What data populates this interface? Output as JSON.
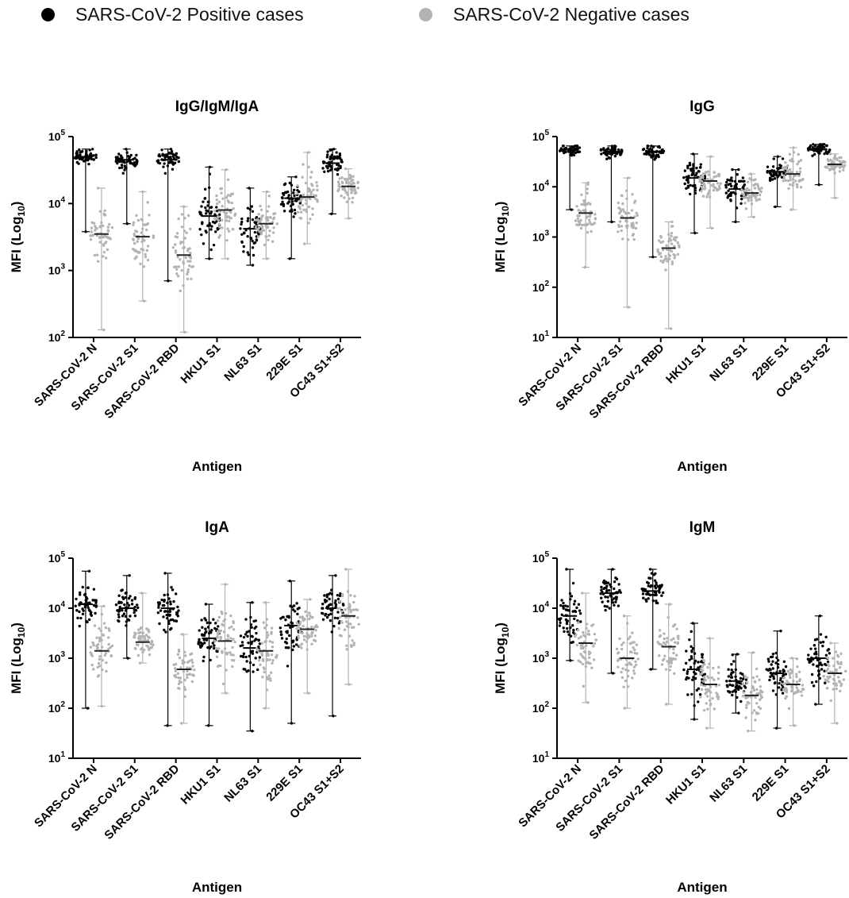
{
  "legend": {
    "positive_label": "SARS-CoV-2 Positive cases",
    "negative_label": "SARS-CoV-2 Negative cases",
    "positive_color": "#000000",
    "negative_color": "#b3b3b3"
  },
  "chart_data": [
    {
      "type": "scatter",
      "title": "IgG/IgM/IgA",
      "xlabel": "Antigen",
      "ylabel": "MFI (Log10)",
      "yscale": "log",
      "ylim": [
        100,
        100000
      ],
      "categories": [
        "SARS-CoV-2 N",
        "SARS-CoV-2 S1",
        "SARS-CoV-2 RBD",
        "HKU1 S1",
        "NL63 S1",
        "229E S1",
        "OC43 S1+S2"
      ],
      "series": [
        {
          "name": "SARS-CoV-2 Positive cases",
          "median": [
            50000,
            45000,
            45000,
            6500,
            4200,
            12000,
            40000
          ],
          "min": [
            3800,
            5000,
            700,
            1500,
            1200,
            1500,
            7000
          ],
          "max": [
            65000,
            65000,
            65000,
            35000,
            17000,
            25000,
            65000
          ]
        },
        {
          "name": "SARS-CoV-2 Negative cases",
          "median": [
            3500,
            3200,
            1700,
            8000,
            5000,
            12500,
            18000
          ],
          "min": [
            130,
            350,
            120,
            1500,
            1500,
            2500,
            6000
          ],
          "max": [
            17000,
            15000,
            9000,
            32000,
            15000,
            58000,
            33000
          ]
        }
      ]
    },
    {
      "type": "scatter",
      "title": "IgG",
      "xlabel": "Antigen",
      "ylabel": "MFI (Log10)",
      "yscale": "log",
      "ylim": [
        10,
        100000
      ],
      "categories": [
        "SARS-CoV-2 N",
        "SARS-CoV-2 S1",
        "SARS-CoV-2 RBD",
        "HKU1 S1",
        "NL63 S1",
        "229E S1",
        "OC43 S1+S2"
      ],
      "series": [
        {
          "name": "SARS-CoV-2 Positive cases",
          "median": [
            55000,
            50000,
            50000,
            15000,
            9000,
            20000,
            55000
          ],
          "min": [
            3500,
            2000,
            400,
            1200,
            2000,
            4000,
            11000
          ],
          "max": [
            65000,
            65000,
            65000,
            45000,
            22000,
            40000,
            70000
          ]
        },
        {
          "name": "SARS-CoV-2 Negative cases",
          "median": [
            3000,
            2400,
            600,
            13000,
            7500,
            18000,
            28000
          ],
          "min": [
            250,
            40,
            15,
            1500,
            2500,
            3500,
            6000
          ],
          "max": [
            12000,
            15000,
            2000,
            40000,
            18000,
            60000,
            45000
          ]
        }
      ]
    },
    {
      "type": "scatter",
      "title": "IgA",
      "xlabel": "Antigen",
      "ylabel": "MFI (Log10)",
      "yscale": "log",
      "ylim": [
        10,
        100000
      ],
      "categories": [
        "SARS-CoV-2 N",
        "SARS-CoV-2 S1",
        "SARS-CoV-2 RBD",
        "HKU1 S1",
        "NL63 S1",
        "229E S1",
        "OC43 S1+S2"
      ],
      "series": [
        {
          "name": "SARS-CoV-2 Positive cases",
          "median": [
            12000,
            10000,
            10000,
            2500,
            1600,
            4500,
            10000
          ],
          "min": [
            100,
            1000,
            45,
            45,
            35,
            50,
            70
          ],
          "max": [
            55000,
            45000,
            50000,
            12000,
            13000,
            35000,
            45000
          ]
        },
        {
          "name": "SARS-CoV-2 Negative cases",
          "median": [
            1400,
            2100,
            600,
            2200,
            1400,
            3800,
            7000
          ],
          "min": [
            110,
            800,
            50,
            200,
            100,
            200,
            300
          ],
          "max": [
            11000,
            20000,
            3000,
            30000,
            13000,
            15000,
            60000
          ]
        }
      ]
    },
    {
      "type": "scatter",
      "title": "IgM",
      "xlabel": "Antigen",
      "ylabel": "MFI (Log10)",
      "yscale": "log",
      "ylim": [
        10,
        100000
      ],
      "categories": [
        "SARS-CoV-2 N",
        "SARS-CoV-2 S1",
        "SARS-CoV-2 RBD",
        "HKU1 S1",
        "NL63 S1",
        "229E S1",
        "OC43 S1+S2"
      ],
      "series": [
        {
          "name": "SARS-CoV-2 Positive cases",
          "median": [
            7000,
            20000,
            22000,
            600,
            350,
            500,
            1000
          ],
          "min": [
            900,
            500,
            600,
            60,
            80,
            40,
            120
          ],
          "max": [
            60000,
            60000,
            60000,
            5000,
            1200,
            3500,
            7000
          ]
        },
        {
          "name": "SARS-CoV-2 Negative cases",
          "median": [
            2000,
            1000,
            1700,
            300,
            180,
            300,
            500
          ],
          "min": [
            130,
            100,
            120,
            40,
            35,
            45,
            50
          ],
          "max": [
            20000,
            7000,
            12000,
            2500,
            1300,
            1000,
            2000
          ]
        }
      ]
    }
  ]
}
